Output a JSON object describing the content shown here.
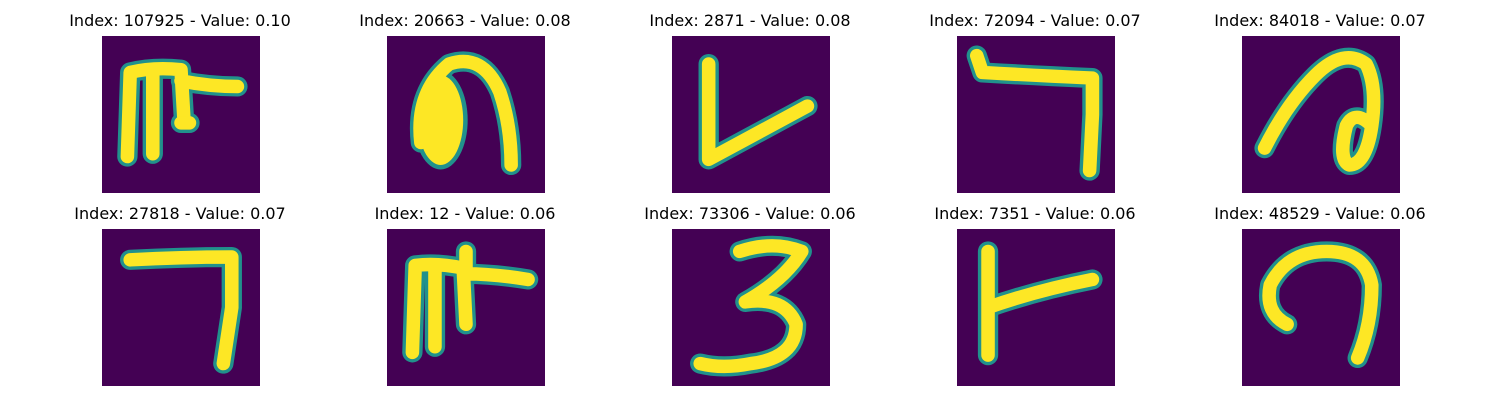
{
  "figure": {
    "background_color": "#440154",
    "stroke_color": "#fde725",
    "edge_color": "#21918c",
    "items": [
      {
        "title": "Index: 107925 - Value: 0.10",
        "glyph": "hook-t"
      },
      {
        "title": "Index: 20663 - Value: 0.08",
        "glyph": "arch-filled"
      },
      {
        "title": "Index: 2871 - Value: 0.08",
        "glyph": "v-check"
      },
      {
        "title": "Index: 72094 - Value: 0.07",
        "glyph": "seven-hook"
      },
      {
        "title": "Index: 84018 - Value: 0.07",
        "glyph": "loop-a"
      },
      {
        "title": "Index: 27818 - Value: 0.07",
        "glyph": "seven-corner"
      },
      {
        "title": "Index: 12 - Value: 0.06",
        "glyph": "hook-t-wide"
      },
      {
        "title": "Index: 73306 - Value: 0.06",
        "glyph": "three"
      },
      {
        "title": "Index: 7351 - Value: 0.06",
        "glyph": "t-side"
      },
      {
        "title": "Index: 48529 - Value: 0.06",
        "glyph": "curl-n"
      }
    ]
  }
}
